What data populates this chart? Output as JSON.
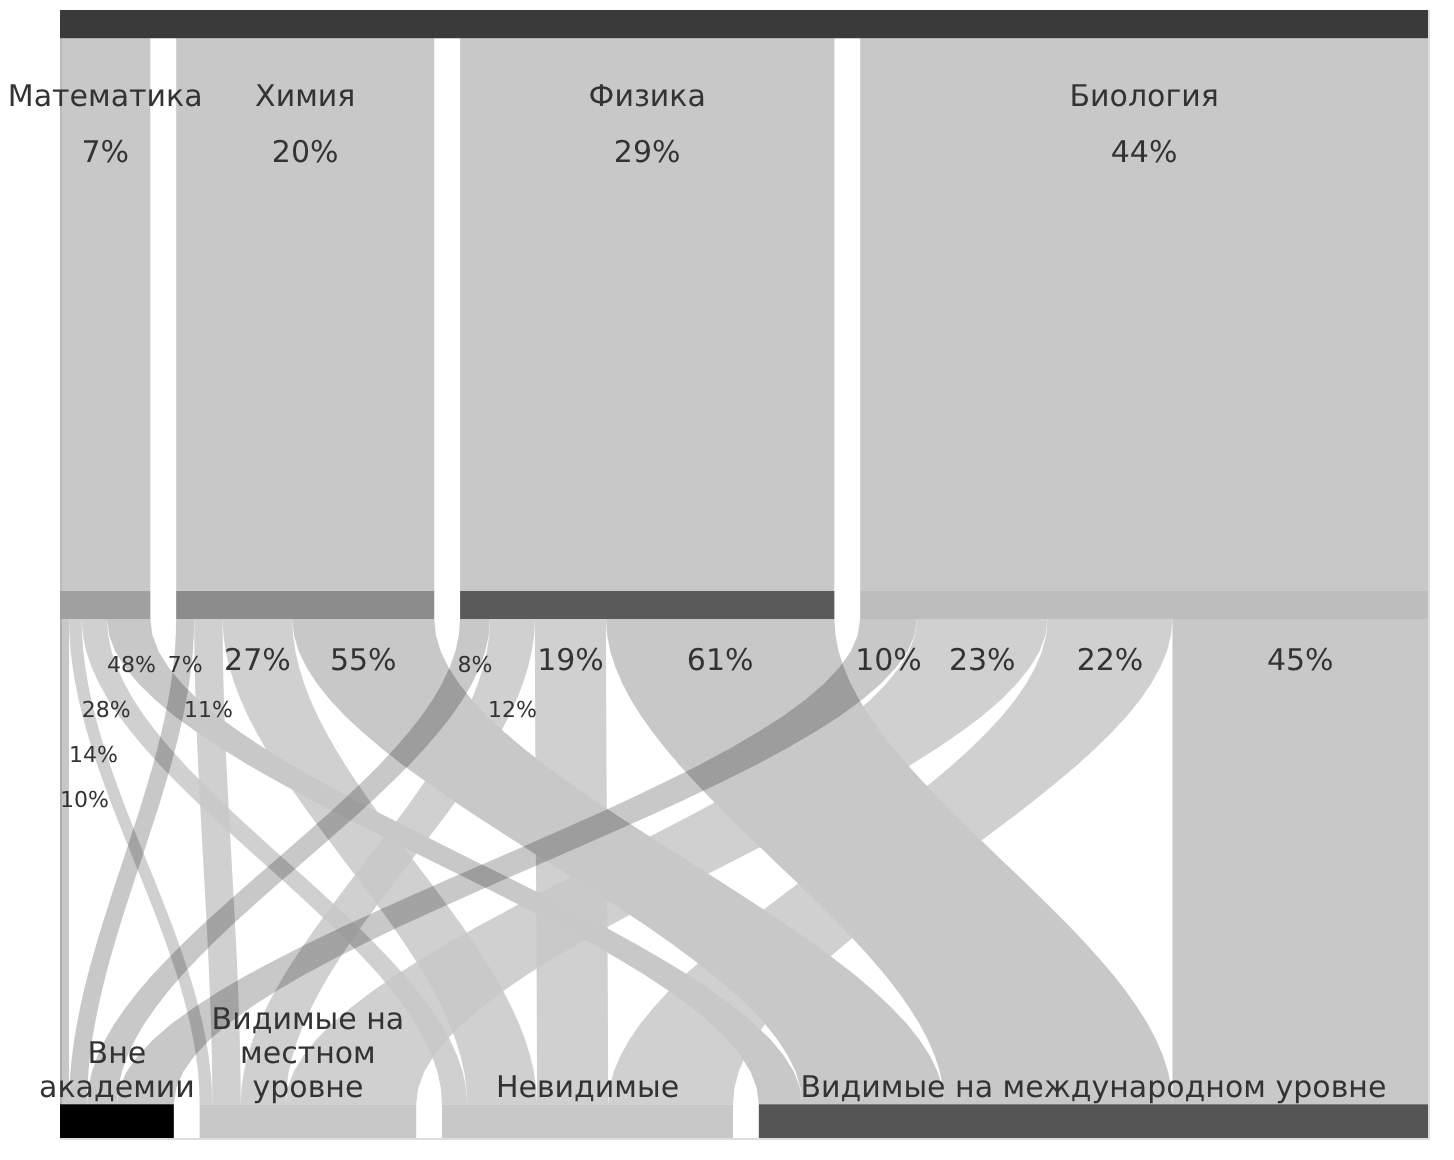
{
  "chart_data": {
    "type": "other",
    "categories": [
      "Математика",
      "Химия",
      "Физика",
      "Биология"
    ],
    "values": [
      7,
      20,
      29,
      44
    ],
    "value_labels": [
      "7%",
      "20%",
      "29%",
      "44%"
    ],
    "colors": [
      "#a0a0a0",
      "#8c8c8c",
      "#5a5a5a",
      "#bdbdbd"
    ],
    "series": [
      {
        "name": "Вне академии",
        "color": "#000000",
        "values": [
          10,
          7,
          8,
          10
        ],
        "value_labels": [
          "10%",
          "7%",
          "8%",
          "10%"
        ]
      },
      {
        "name": "Видимые на местном уровне",
        "color": "#c8c8c8",
        "values": [
          14,
          11,
          12,
          23
        ],
        "value_labels": [
          "14%",
          "11%",
          "12%",
          "23%"
        ]
      },
      {
        "name": "Невидимые",
        "color": "#c8c8c8",
        "values": [
          28,
          27,
          19,
          22
        ],
        "value_labels": [
          "28%",
          "27%",
          "19%",
          "22%"
        ]
      },
      {
        "name": "Видимые на международном уровне",
        "color": "#555555",
        "values": [
          48,
          55,
          61,
          45
        ],
        "value_labels": [
          "48%",
          "55%",
          "61%",
          "45%"
        ]
      }
    ]
  }
}
